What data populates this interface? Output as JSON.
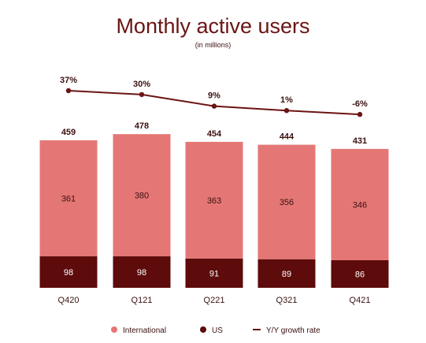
{
  "chart_data": {
    "type": "bar",
    "stacked": true,
    "title": "Monthly active users",
    "subtitle": "(in millions)",
    "categories": [
      "Q420",
      "Q121",
      "Q221",
      "Q321",
      "Q421"
    ],
    "totals": [
      "459",
      "478",
      "454",
      "444",
      "431"
    ],
    "series": [
      {
        "name": "US",
        "values": [
          98,
          98,
          91,
          89,
          86
        ],
        "color": "#5e0b0b"
      },
      {
        "name": "International",
        "values": [
          361,
          380,
          363,
          356,
          346
        ],
        "color": "#e47775"
      }
    ],
    "line_series": {
      "name": "Y/Y growth rate",
      "values": [
        37,
        30,
        9,
        1,
        -6
      ],
      "labels": [
        "37%",
        "30%",
        "9%",
        "1%",
        "-6%"
      ],
      "color": "#6b1414"
    },
    "legend": [
      "International",
      "US",
      "Y/Y growth rate"
    ],
    "legend_position": "bottom",
    "grid": false,
    "title_color": "#6b1414",
    "label_color": "#3b1010"
  }
}
